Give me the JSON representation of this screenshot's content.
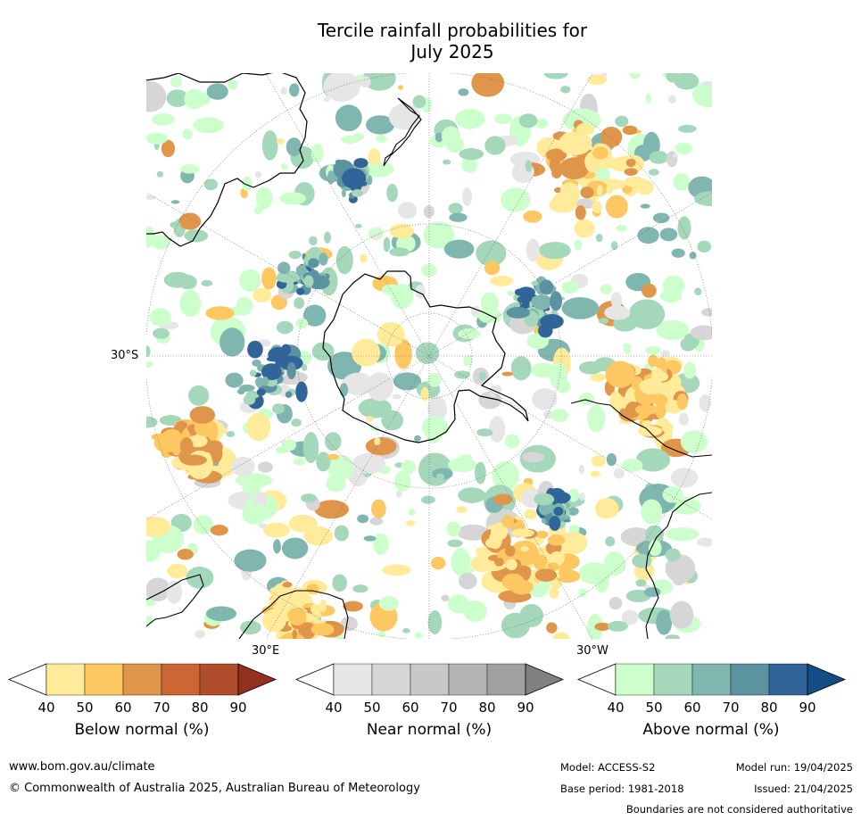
{
  "title": {
    "line1": "Tercile rainfall probabilities for",
    "line2": "July 2025"
  },
  "map": {
    "projection": "south-polar-stereographic",
    "lat_label": "30°S",
    "lon_labels": [
      "30°E",
      "30°W"
    ],
    "features": [
      "Antarctica",
      "Australia",
      "New Zealand",
      "South America",
      "Southern Africa"
    ]
  },
  "colorbars": [
    {
      "name": "below-normal",
      "label": "Below normal (%)",
      "ticks": [
        "40",
        "50",
        "60",
        "70",
        "80",
        "90"
      ],
      "colors": [
        "#ffffff",
        "#ffeb99",
        "#fdc862",
        "#e0964a",
        "#cc6633",
        "#b04e2c",
        "#93301f"
      ]
    },
    {
      "name": "near-normal",
      "label": "Near normal (%)",
      "ticks": [
        "40",
        "50",
        "60",
        "70",
        "80",
        "90"
      ],
      "colors": [
        "#ffffff",
        "#e6e6e6",
        "#d6d6d6",
        "#c8c8c8",
        "#b5b5b5",
        "#a0a0a0",
        "#808080"
      ]
    },
    {
      "name": "above-normal",
      "label": "Above normal (%)",
      "ticks": [
        "40",
        "50",
        "60",
        "70",
        "80",
        "90"
      ],
      "colors": [
        "#ffffff",
        "#ccffcc",
        "#a5d7bb",
        "#80b6b0",
        "#5b93a0",
        "#316599",
        "#134d86"
      ]
    }
  ],
  "footer": {
    "website": "www.bom.gov.au/climate",
    "copyright": "© Commonwealth of Australia 2025, Australian Bureau of Meteorology",
    "model": "Model: ACCESS-S2",
    "model_run": "Model run: 19/04/2025",
    "base_period": "Base period: 1981-2018",
    "issued": "Issued: 21/04/2025",
    "disclaimer": "Boundaries are not considered authoritative"
  }
}
